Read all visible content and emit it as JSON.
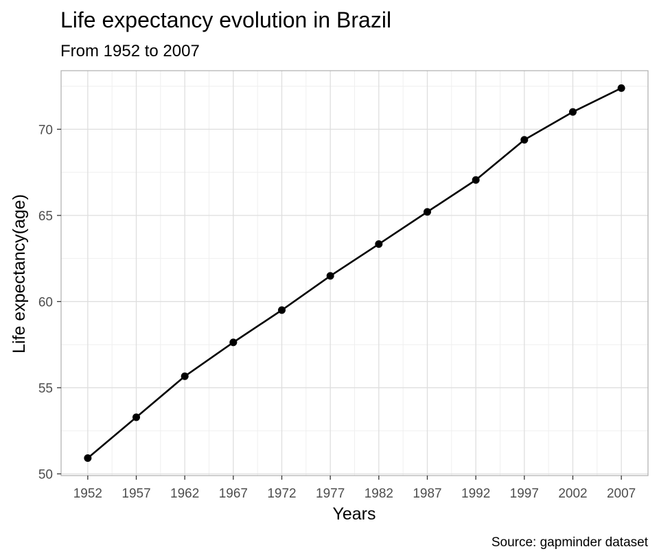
{
  "chart_data": {
    "type": "line",
    "title": "Life expectancy evolution in Brazil",
    "subtitle": "From 1952 to 2007",
    "xlabel": "Years",
    "ylabel": "Life expectancy(age)",
    "caption": "Source: gapminder dataset",
    "x": [
      1952,
      1957,
      1962,
      1967,
      1972,
      1977,
      1982,
      1987,
      1992,
      1997,
      2002,
      2007
    ],
    "x_tick_labels": [
      "1952",
      "1957",
      "1962",
      "1967",
      "1972",
      "1977",
      "1982",
      "1987",
      "1992",
      "1997",
      "2002",
      "2007"
    ],
    "y_tick_values": [
      50,
      55,
      60,
      65,
      70
    ],
    "y_tick_labels": [
      "50",
      "55",
      "60",
      "65",
      "70"
    ],
    "series": [
      {
        "values": [
          50.917,
          53.285,
          55.665,
          57.632,
          59.504,
          61.489,
          63.336,
          65.205,
          67.057,
          69.388,
          71.006,
          72.39
        ]
      }
    ],
    "xlim": [
      1949.25,
      2009.75
    ],
    "ylim": [
      49.9,
      73.4
    ],
    "grid": true,
    "legend": "none",
    "colors": {
      "line": "#000000",
      "point": "#000000",
      "grid_major": "#dedede",
      "grid_minor": "#efefef",
      "panel_border": "#b3b3b3"
    }
  }
}
